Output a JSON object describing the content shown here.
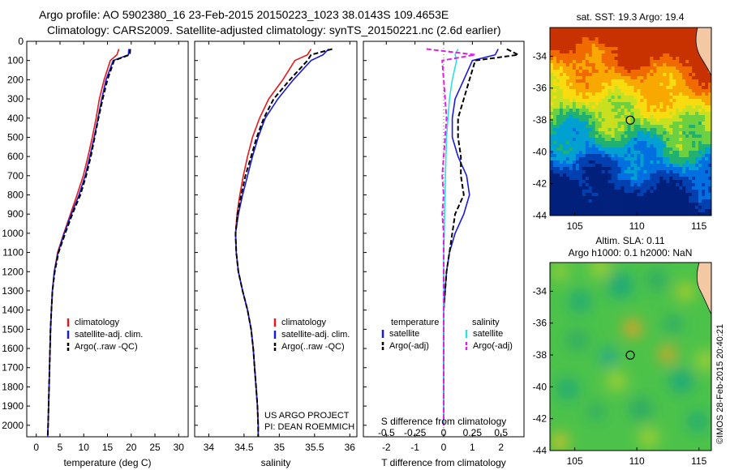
{
  "title_line1": "Argo profile: AO 5902380_16 23-Feb-2015 20150223_1023 38.0143S 109.4653E",
  "title_line2": "Climatology: CARS2009. Satellite-adjusted climatology: synTS_20150221.nc (2.6d earlier)",
  "credit": "©IMOS 28-Feb-2015 20:40:21",
  "colors": {
    "climatology": "#e41a1c",
    "satellite": "#1a1adc",
    "argo": "#000000",
    "satellite_salinity": "#2ee0e0",
    "argo_salinity": "#e020e0"
  },
  "chart_data": [
    {
      "type": "line",
      "name": "temperature-profile",
      "xlabel": "temperature (deg C)",
      "ylabel": "",
      "xlim": [
        -2,
        32
      ],
      "ylim": [
        2060,
        0
      ],
      "xticks": [
        0,
        5,
        10,
        15,
        20,
        25,
        30
      ],
      "yticks": [
        0,
        100,
        200,
        300,
        400,
        500,
        600,
        700,
        800,
        900,
        1000,
        1100,
        1200,
        1300,
        1400,
        1500,
        1600,
        1700,
        1800,
        1900,
        2000
      ],
      "legend": [
        "climatology",
        "satellite-adj. clim.",
        "Argo(..raw -QC)"
      ],
      "legend_position": "lower-center",
      "series": [
        {
          "name": "climatology",
          "style": "solid",
          "color": "#e41a1c",
          "x": [
            17.4,
            17.0,
            15.6,
            14.3,
            13.3,
            12.6,
            11.8,
            10.9,
            9.9,
            8.6,
            7.2,
            5.8,
            4.5,
            3.8,
            3.4,
            3.2,
            3.0,
            2.9,
            2.8,
            2.7,
            2.6,
            2.5,
            2.4
          ],
          "y": [
            40,
            70,
            100,
            200,
            300,
            400,
            500,
            600,
            700,
            800,
            900,
            1000,
            1100,
            1200,
            1300,
            1400,
            1500,
            1600,
            1700,
            1800,
            1900,
            2000,
            2060
          ]
        },
        {
          "name": "satellite-adj. clim.",
          "style": "solid",
          "color": "#1a1adc",
          "x": [
            19.5,
            19.4,
            16.2,
            14.7,
            13.8,
            13.0,
            12.2,
            11.3,
            10.3,
            9.0,
            7.4,
            5.9,
            4.6,
            3.8,
            3.4,
            3.2,
            3.0,
            2.9,
            2.8,
            2.7,
            2.6,
            2.5,
            2.4
          ],
          "y": [
            40,
            70,
            100,
            200,
            300,
            400,
            500,
            600,
            700,
            800,
            900,
            1000,
            1100,
            1200,
            1300,
            1400,
            1500,
            1600,
            1700,
            1800,
            1900,
            2000,
            2060
          ]
        },
        {
          "name": "Argo(..raw -QC)",
          "style": "dashed",
          "color": "#000000",
          "x": [
            19.8,
            19.7,
            16.4,
            15.0,
            14.0,
            13.1,
            12.3,
            11.5,
            10.5,
            9.3,
            7.6,
            6.1,
            4.7,
            3.9,
            3.4,
            3.2,
            3.0,
            2.9,
            2.8,
            2.7,
            2.6,
            2.5,
            2.4
          ],
          "y": [
            40,
            70,
            100,
            200,
            300,
            400,
            500,
            600,
            700,
            800,
            900,
            1000,
            1100,
            1200,
            1300,
            1400,
            1500,
            1600,
            1700,
            1800,
            1900,
            2000,
            2060
          ]
        }
      ]
    },
    {
      "type": "line",
      "name": "salinity-profile",
      "xlabel": "salinity",
      "ylabel": "",
      "xlim": [
        33.8,
        36.1
      ],
      "ylim": [
        2060,
        0
      ],
      "xticks": [
        34,
        34.5,
        35,
        35.5,
        36
      ],
      "legend": [
        "climatology",
        "satellite-adj. clim.",
        "Argo(..raw -QC)"
      ],
      "legend_position": "lower-right",
      "annotation": [
        "US ARGO PROJECT",
        "PI: DEAN ROEMMICH"
      ],
      "series": [
        {
          "name": "climatology",
          "style": "solid",
          "color": "#e41a1c",
          "x": [
            35.45,
            35.4,
            35.22,
            35.05,
            34.85,
            34.72,
            34.62,
            34.55,
            34.49,
            34.44,
            34.4,
            34.38,
            34.39,
            34.42,
            34.48,
            34.55,
            34.6,
            34.63,
            34.65,
            34.67,
            34.69,
            34.7,
            34.7
          ],
          "y": [
            40,
            70,
            100,
            200,
            300,
            400,
            500,
            600,
            700,
            800,
            900,
            1000,
            1100,
            1200,
            1300,
            1400,
            1500,
            1600,
            1700,
            1800,
            1900,
            2000,
            2060
          ]
        },
        {
          "name": "satellite-adj. clim.",
          "style": "solid",
          "color": "#1a1adc",
          "x": [
            35.7,
            35.62,
            35.45,
            35.2,
            34.98,
            34.8,
            34.7,
            34.62,
            34.55,
            34.48,
            34.42,
            34.38,
            34.39,
            34.42,
            34.48,
            34.55,
            34.6,
            34.63,
            34.65,
            34.67,
            34.69,
            34.7,
            34.7
          ],
          "y": [
            40,
            70,
            100,
            200,
            300,
            400,
            500,
            600,
            700,
            800,
            900,
            1000,
            1100,
            1200,
            1300,
            1400,
            1500,
            1600,
            1700,
            1800,
            1900,
            2000,
            2060
          ]
        },
        {
          "name": "Argo(..raw -QC)",
          "style": "dashed",
          "color": "#000000",
          "x": [
            35.75,
            35.45,
            35.4,
            35.15,
            34.92,
            34.78,
            34.68,
            34.6,
            34.52,
            34.46,
            34.41,
            34.38,
            34.39,
            34.42,
            34.48,
            34.55,
            34.6,
            34.63,
            34.65,
            34.67,
            34.69,
            34.7,
            34.7
          ],
          "y": [
            40,
            70,
            100,
            200,
            300,
            400,
            500,
            600,
            700,
            800,
            900,
            1000,
            1100,
            1200,
            1300,
            1400,
            1500,
            1600,
            1700,
            1800,
            1900,
            2000,
            2060
          ]
        }
      ]
    },
    {
      "type": "line",
      "name": "difference-profile",
      "xlabel": "T difference from climatology",
      "top_label": "S difference from climatology",
      "xlim": [
        -2.8,
        2.8
      ],
      "ylim": [
        2060,
        0
      ],
      "xticks": [
        -2,
        -1,
        0,
        1,
        2
      ],
      "xtick_labels": [
        "-2",
        "-1",
        "0",
        "1",
        "2"
      ],
      "top_ticks": [
        -0.5,
        -0.25,
        0,
        0.25,
        0.5
      ],
      "top_tick_labels": [
        "-0.5",
        "-0.25",
        "0",
        "0.25",
        "0.5"
      ],
      "legend_temperature_title": "temperature",
      "legend_salinity_title": "salinity",
      "legend": [
        "satellite",
        "Argo(-adj)",
        "satellite",
        "Argo(-adj)"
      ],
      "legend_position": "lower-center",
      "series": [
        {
          "name": "temperature satellite",
          "style": "solid",
          "color": "#1a1adc",
          "x": [
            1.9,
            1.8,
            1.0,
            0.7,
            0.4,
            0.3,
            0.3,
            0.5,
            0.8,
            0.9,
            0.7,
            0.4,
            0.2,
            0.1,
            0.05,
            0.0,
            0.0,
            0.0,
            0.0,
            0.0,
            0.0,
            0.0
          ],
          "y": [
            40,
            70,
            100,
            200,
            300,
            400,
            500,
            600,
            700,
            800,
            900,
            1000,
            1100,
            1200,
            1300,
            1400,
            1500,
            1600,
            1700,
            1800,
            1900,
            2000
          ]
        },
        {
          "name": "temperature Argo(-adj)",
          "style": "dashed",
          "color": "#000000",
          "x": [
            2.2,
            2.6,
            1.1,
            0.9,
            0.7,
            0.5,
            0.5,
            0.6,
            0.6,
            0.7,
            0.4,
            0.3,
            0.2,
            0.1,
            0.05,
            0.0,
            0.0,
            0.0,
            0.0,
            0.0,
            0.0,
            0.0
          ],
          "y": [
            40,
            70,
            100,
            200,
            300,
            400,
            500,
            600,
            700,
            800,
            900,
            1000,
            1100,
            1200,
            1300,
            1400,
            1500,
            1600,
            1700,
            1800,
            1900,
            2000
          ]
        },
        {
          "name": "salinity satellite",
          "style": "solid",
          "color": "#2ee0e0",
          "x": [
            0.5,
            0.4,
            0.45,
            0.3,
            0.2,
            0.15,
            0.1,
            0.08,
            0.06,
            0.05,
            0.03,
            0.02,
            0.0,
            0.0,
            0.0,
            0.0,
            0.0,
            0.0,
            0.0,
            0.0,
            0.0,
            0.0
          ],
          "y": [
            40,
            70,
            100,
            200,
            300,
            400,
            500,
            600,
            700,
            800,
            900,
            1000,
            1100,
            1200,
            1300,
            1400,
            1500,
            1600,
            1700,
            1800,
            1900,
            2000
          ]
        },
        {
          "name": "salinity Argo(-adj)",
          "style": "dashed",
          "color": "#e020e0",
          "x": [
            -0.6,
            1.1,
            -0.05,
            0.0,
            0.05,
            0.1,
            0.05,
            0.0,
            -0.05,
            0.0,
            -0.05,
            0.0,
            0.0,
            0.0,
            0.0,
            0.0,
            0.0,
            0.0,
            0.0,
            0.0,
            0.0,
            0.0
          ],
          "y": [
            40,
            70,
            100,
            200,
            300,
            400,
            500,
            600,
            700,
            800,
            900,
            1000,
            1100,
            1200,
            1300,
            1400,
            1500,
            1600,
            1700,
            1800,
            1900,
            2000
          ]
        }
      ]
    },
    {
      "type": "heatmap",
      "name": "sst-map",
      "title": "sat. SST: 19.3 Argo: 19.4",
      "xlim": [
        103,
        116
      ],
      "ylim": [
        -44,
        -32.2
      ],
      "xticks": [
        105,
        110,
        115
      ],
      "yticks": [
        -34,
        -36,
        -38,
        -40,
        -42,
        -44
      ],
      "marker": {
        "lon": 109.47,
        "lat": -38.01
      }
    },
    {
      "type": "heatmap",
      "name": "sla-map",
      "title": "Altim. SLA: 0.11",
      "subtitle": "Argo h1000: 0.1 h2000: NaN",
      "xlim": [
        103,
        116
      ],
      "ylim": [
        -44,
        -32.2
      ],
      "xticks": [
        105,
        110,
        115
      ],
      "yticks": [
        -34,
        -36,
        -38,
        -40,
        -42,
        -44
      ],
      "marker": {
        "lon": 109.47,
        "lat": -38.01
      }
    }
  ]
}
